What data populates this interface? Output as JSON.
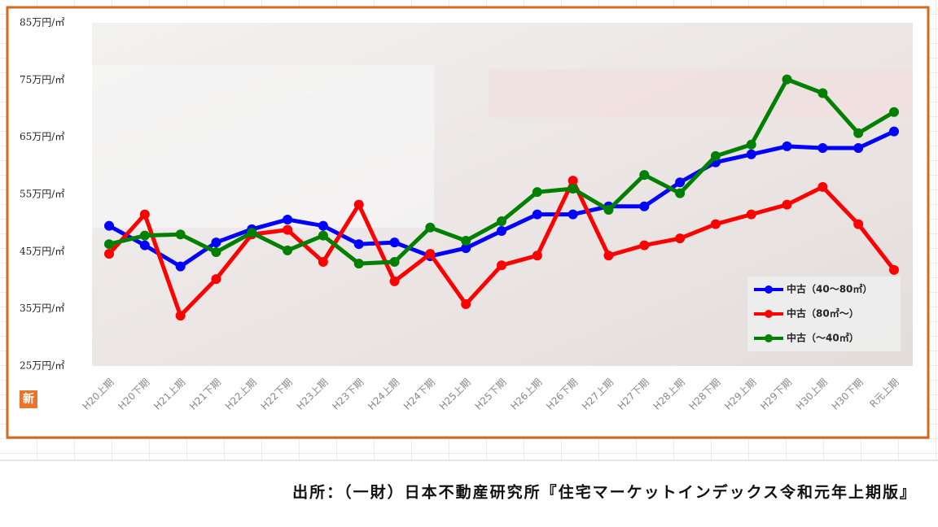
{
  "chart_data": {
    "type": "line",
    "categories": [
      "H20上期",
      "H20下期",
      "H21上期",
      "H21下期",
      "H22上期",
      "H22下期",
      "H23上期",
      "H23下期",
      "H24上期",
      "H24下期",
      "H25上期",
      "H25下期",
      "H26上期",
      "H26下期",
      "H27上期",
      "H27下期",
      "H28上期",
      "H28下期",
      "H29上期",
      "H29下期",
      "H30上期",
      "H30下期",
      "R元上期"
    ],
    "series": [
      {
        "name": "中古（40～80㎡）",
        "color": "#0000ff",
        "values": [
          49.5,
          46.1,
          42.4,
          46.6,
          48.9,
          50.6,
          49.5,
          46.3,
          46.6,
          44.2,
          45.6,
          48.6,
          51.5,
          51.5,
          52.9,
          52.9,
          57.1,
          60.6,
          62.0,
          63.4,
          63.1,
          63.1,
          66.0
        ]
      },
      {
        "name": "中古（80㎡～）",
        "color": "#ff0000",
        "values": [
          44.6,
          51.5,
          33.8,
          40.2,
          48.0,
          48.8,
          43.2,
          53.2,
          39.8,
          44.6,
          35.8,
          42.6,
          44.3,
          57.4,
          44.3,
          46.1,
          47.3,
          49.8,
          51.5,
          53.2,
          56.3,
          49.8,
          41.8
        ]
      },
      {
        "name": "中古（～40㎡）",
        "color": "#008000",
        "values": [
          46.3,
          47.8,
          48.0,
          44.9,
          48.3,
          45.2,
          47.8,
          42.9,
          43.2,
          49.2,
          46.9,
          50.3,
          55.4,
          56.0,
          52.3,
          58.4,
          55.2,
          61.7,
          63.7,
          75.1,
          72.7,
          65.7,
          69.4
        ]
      }
    ],
    "ylim": [
      25,
      85
    ],
    "yticks": [
      {
        "value": 25,
        "label": "25万円/㎡"
      },
      {
        "value": 35,
        "label": "35万円/㎡"
      },
      {
        "value": 45,
        "label": "45万円/㎡"
      },
      {
        "value": 55,
        "label": "55万円/㎡"
      },
      {
        "value": 65,
        "label": "65万円/㎡"
      },
      {
        "value": 75,
        "label": "75万円/㎡"
      },
      {
        "value": 85,
        "label": "85万円/㎡"
      }
    ],
    "grid": false,
    "legend": "lower right"
  },
  "icon_label": "新",
  "source": "出所：（一財）日本不動産研究所『住宅マーケットインデックス令和元年上期版』"
}
